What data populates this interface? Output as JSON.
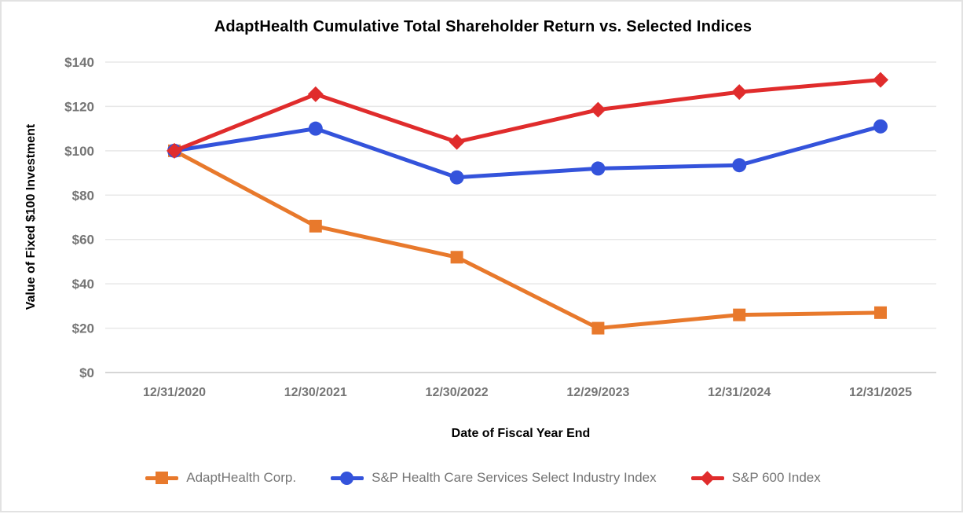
{
  "page": {
    "background": "#ffffff",
    "border_color": "#e2e2e2"
  },
  "chart_data": {
    "type": "line",
    "title": "AdaptHealth Cumulative Total Shareholder Return vs. Selected Indices",
    "xlabel": "Date of Fiscal Year End",
    "ylabel": "Value of Fixed $100 Investment",
    "categories": [
      "12/31/2020",
      "12/30/2021",
      "12/30/2022",
      "12/29/2023",
      "12/31/2024",
      "12/31/2025"
    ],
    "series": [
      {
        "name": "AdaptHealth Corp.",
        "marker": "square",
        "color": "#E8792C",
        "values": [
          100,
          66,
          52,
          20,
          26,
          27
        ]
      },
      {
        "name": "S&P Health Care Services Select Industry Index",
        "marker": "circle",
        "color": "#3453DB",
        "values": [
          100,
          110,
          88,
          92,
          93.5,
          111
        ]
      },
      {
        "name": "S&P 600 Index",
        "marker": "diamond",
        "color": "#E02C2C",
        "values": [
          100,
          125.5,
          104,
          118.5,
          126.5,
          132
        ]
      }
    ],
    "ylim": [
      0,
      140
    ],
    "ytick_step": 20,
    "ytick_prefix": "$",
    "grid": true,
    "legend_position": "bottom",
    "style_colors": {
      "gridline": "#e8e8e8",
      "axis_line": "#d6d6d6",
      "tick_label": "#757575",
      "title_text": "#000000"
    }
  }
}
